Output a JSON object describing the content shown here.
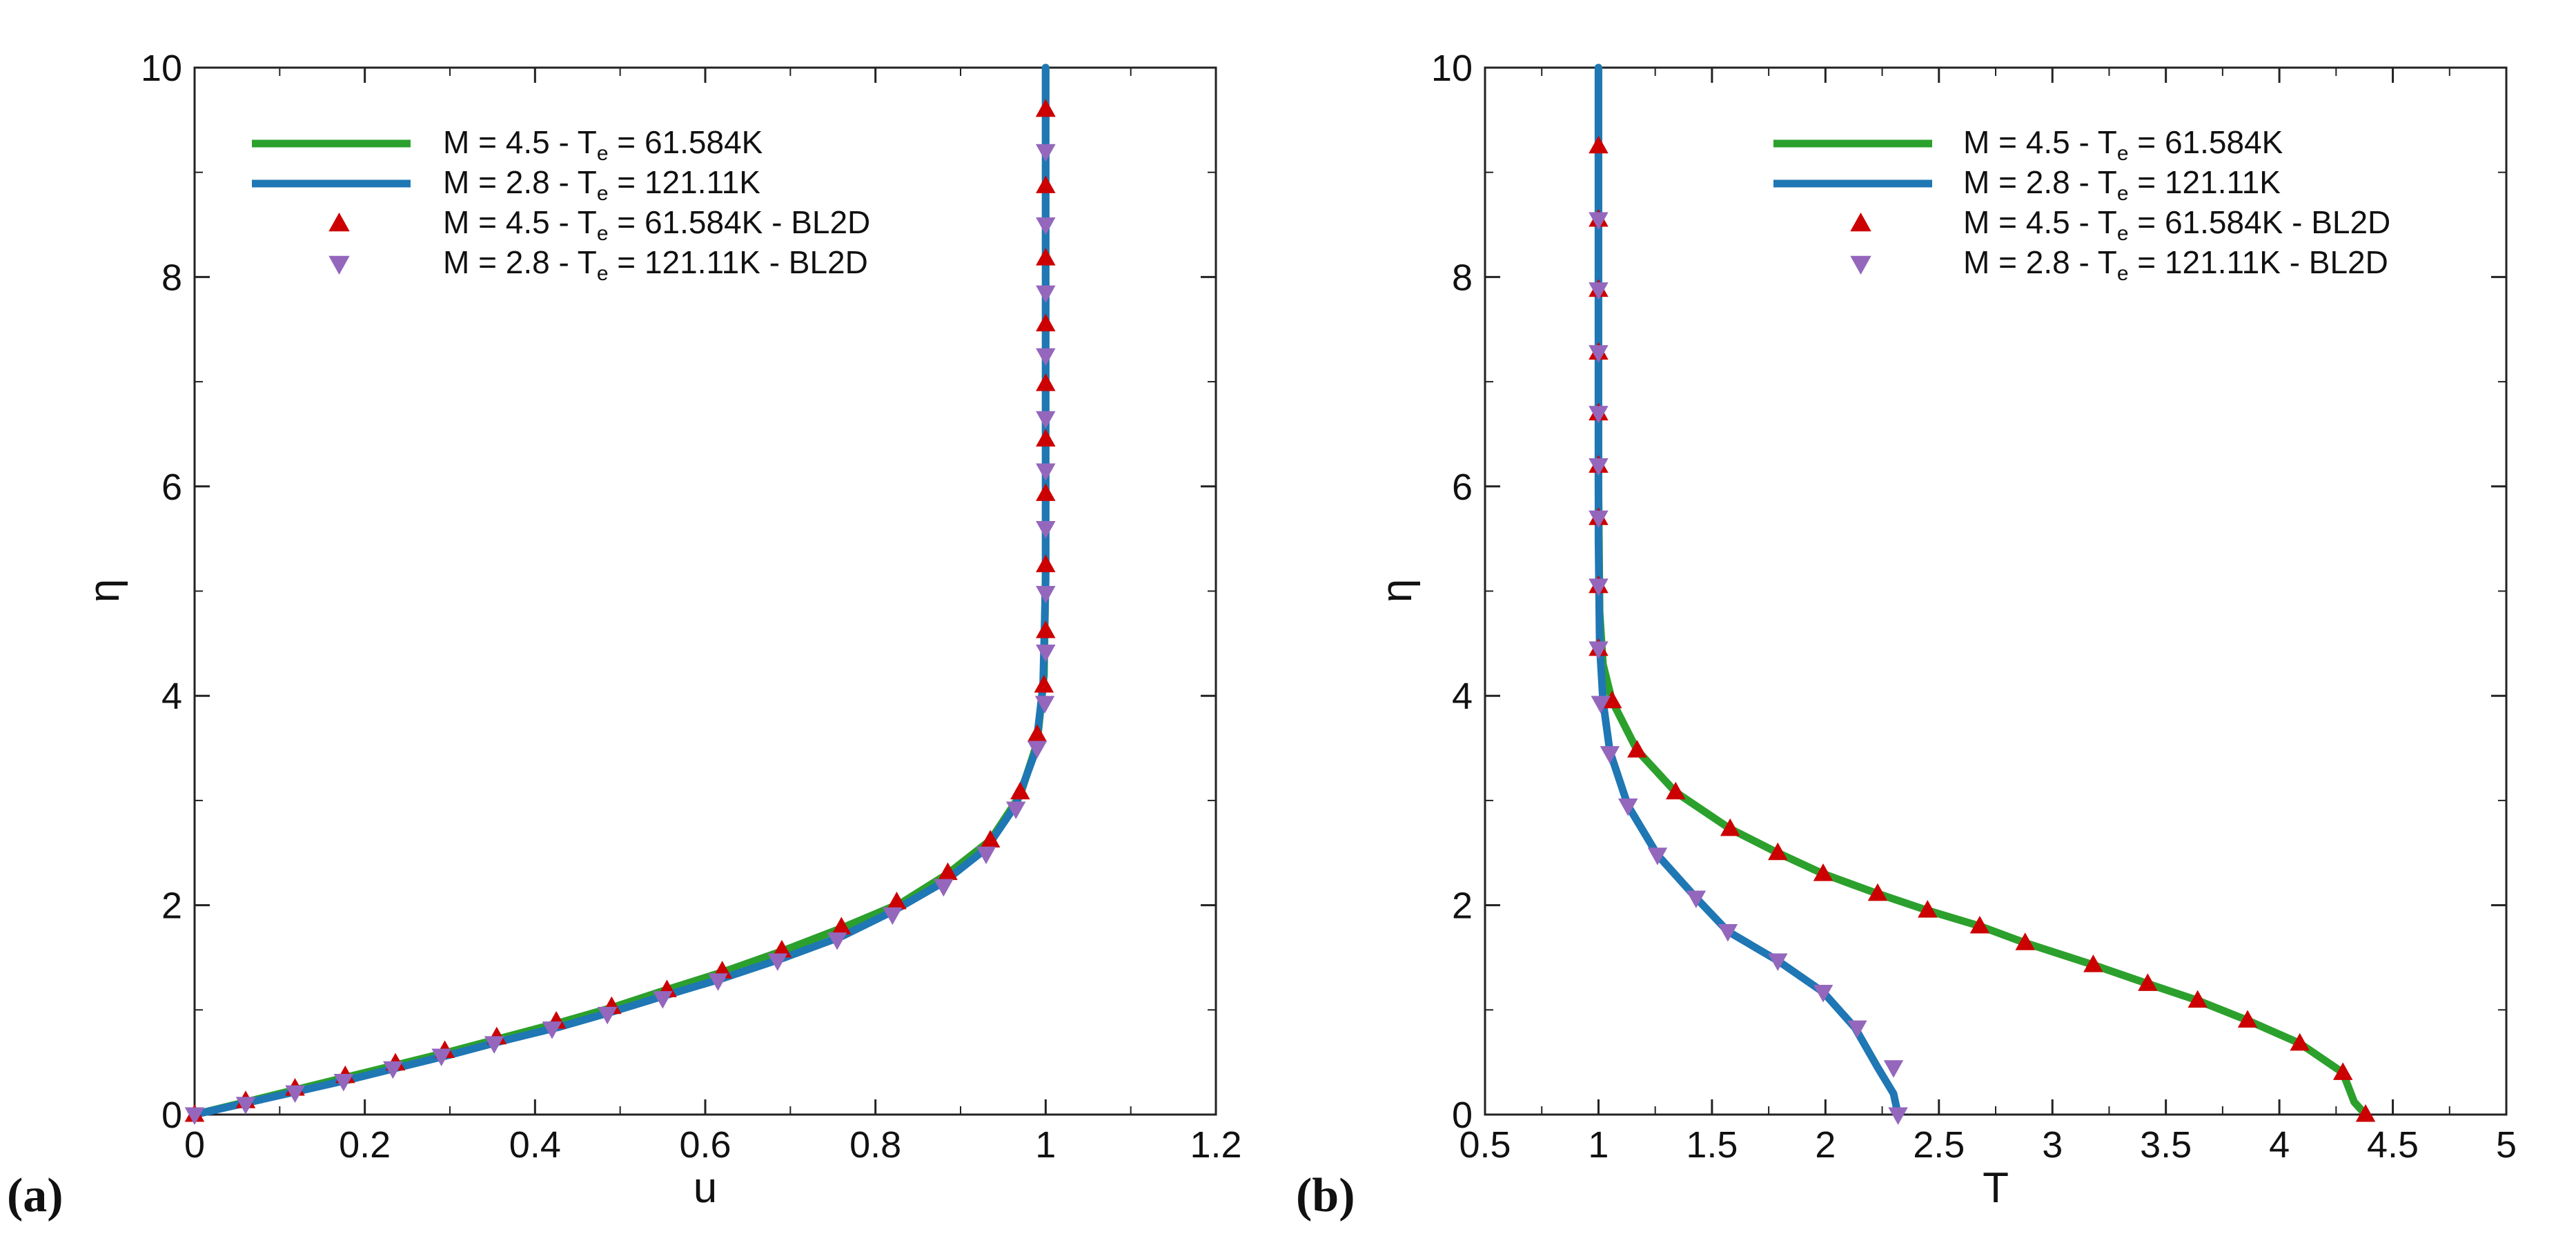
{
  "colors": {
    "green": "#2ca02c",
    "blue": "#1f77b4",
    "red": "#cc0000",
    "purple": "#9467bd"
  },
  "chart_data": [
    {
      "panel_label": "(a)",
      "type": "line",
      "xlabel": "u",
      "ylabel": "η",
      "xlim": [
        0,
        1.2
      ],
      "ylim": [
        0,
        10
      ],
      "xticks": [
        "0",
        "0.2",
        "0.4",
        "0.6",
        "0.8",
        "1",
        "1.2"
      ],
      "yticks": [
        "0",
        "2",
        "4",
        "6",
        "8",
        "10"
      ],
      "legend_position": "top-left",
      "legend": [
        {
          "pre": "M = 4.5 - T",
          "sub": "e",
          "post": " = 61.584K",
          "kind": "line",
          "color": "#2ca02c"
        },
        {
          "pre": "M = 2.8 - T",
          "sub": "e",
          "post": " = 121.11K",
          "kind": "line",
          "color": "#1f77b4"
        },
        {
          "pre": "M = 4.5 - T",
          "sub": "e",
          "post": " = 61.584K - BL2D",
          "kind": "tri-up",
          "color": "#cc0000"
        },
        {
          "pre": "M = 2.8 - T",
          "sub": "e",
          "post": " = 121.11K - BL2D",
          "kind": "tri-down",
          "color": "#9467bd"
        }
      ],
      "series": [
        {
          "name": "M = 4.5 - Te = 61.584K",
          "kind": "line",
          "color": "#2ca02c",
          "x": [
            0,
            0.06,
            0.12,
            0.18,
            0.24,
            0.3,
            0.36,
            0.43,
            0.49,
            0.55,
            0.62,
            0.69,
            0.76,
            0.83,
            0.885,
            0.935,
            0.97,
            0.99,
            0.998,
            1.0,
            1.0
          ],
          "y": [
            0,
            0.12,
            0.24,
            0.36,
            0.48,
            0.6,
            0.73,
            0.88,
            1.02,
            1.18,
            1.36,
            1.56,
            1.78,
            2.02,
            2.3,
            2.62,
            3.05,
            3.55,
            4.2,
            5.2,
            10
          ]
        },
        {
          "name": "M = 2.8 - Te = 121.11K",
          "kind": "line",
          "color": "#1f77b4",
          "x": [
            0,
            0.06,
            0.12,
            0.18,
            0.24,
            0.3,
            0.36,
            0.43,
            0.49,
            0.55,
            0.62,
            0.69,
            0.76,
            0.82,
            0.88,
            0.93,
            0.965,
            0.988,
            0.997,
            1.0,
            1.0
          ],
          "y": [
            0,
            0.11,
            0.22,
            0.33,
            0.45,
            0.57,
            0.7,
            0.84,
            0.98,
            1.13,
            1.3,
            1.49,
            1.7,
            1.94,
            2.22,
            2.54,
            2.96,
            3.47,
            4.1,
            5.1,
            10
          ]
        },
        {
          "name": "M = 4.5 - Te = 61.584K - BL2D",
          "kind": "tri-up",
          "color": "#cc0000",
          "x": [
            0,
            0.06,
            0.118,
            0.177,
            0.236,
            0.294,
            0.355,
            0.425,
            0.49,
            0.555,
            0.62,
            0.69,
            0.76,
            0.825,
            0.885,
            0.935,
            0.97,
            0.99,
            0.998,
            1,
            1,
            1,
            1,
            1,
            1,
            1,
            1,
            1,
            1,
            1,
            1
          ],
          "y": [
            0,
            0.13,
            0.25,
            0.37,
            0.49,
            0.61,
            0.74,
            0.89,
            1.03,
            1.19,
            1.37,
            1.57,
            1.79,
            2.03,
            2.31,
            2.62,
            3.08,
            3.63,
            4.1,
            4.62,
            5.25,
            5.93,
            6.45,
            6.98,
            7.55,
            8.18,
            8.87,
            9.6,
            9.6,
            9.6,
            9.6
          ]
        },
        {
          "name": "M = 2.8 - Te = 121.11K - BL2D",
          "kind": "tri-down",
          "color": "#9467bd",
          "x": [
            0,
            0.06,
            0.118,
            0.175,
            0.233,
            0.29,
            0.352,
            0.42,
            0.485,
            0.55,
            0.615,
            0.685,
            0.755,
            0.82,
            0.88,
            0.93,
            0.965,
            0.99,
            0.999,
            1,
            1,
            1,
            1,
            1,
            1,
            1,
            1,
            1,
            1
          ],
          "y": [
            0,
            0.1,
            0.21,
            0.32,
            0.44,
            0.56,
            0.68,
            0.82,
            0.96,
            1.11,
            1.28,
            1.47,
            1.67,
            1.91,
            2.18,
            2.49,
            2.92,
            3.5,
            3.93,
            4.42,
            4.98,
            5.6,
            6.15,
            6.65,
            7.25,
            7.85,
            8.5,
            9.2,
            9.2
          ]
        }
      ]
    },
    {
      "panel_label": "(b)",
      "type": "line",
      "xlabel": "T",
      "ylabel": "η",
      "xlim": [
        0.5,
        5
      ],
      "ylim": [
        0,
        10
      ],
      "xticks": [
        "0.5",
        "1",
        "1.5",
        "2",
        "2.5",
        "3",
        "3.5",
        "4",
        "4.5",
        "5"
      ],
      "yticks": [
        "0",
        "2",
        "4",
        "6",
        "8",
        "10"
      ],
      "legend_position": "top-right",
      "legend": [
        {
          "pre": "M = 4.5 - T",
          "sub": "e",
          "post": " = 61.584K",
          "kind": "line",
          "color": "#2ca02c"
        },
        {
          "pre": "M = 2.8 - T",
          "sub": "e",
          "post": " = 121.11K",
          "kind": "line",
          "color": "#1f77b4"
        },
        {
          "pre": "M = 4.5 - T",
          "sub": "e",
          "post": " = 61.584K - BL2D",
          "kind": "tri-up",
          "color": "#cc0000"
        },
        {
          "pre": "M = 2.8 - T",
          "sub": "e",
          "post": " = 121.11K - BL2D",
          "kind": "tri-down",
          "color": "#9467bd"
        }
      ],
      "series": [
        {
          "name": "M = 4.5 - Te = 61.584K",
          "kind": "line",
          "color": "#2ca02c",
          "x": [
            4.38,
            4.33,
            4.28,
            4.09,
            3.86,
            3.64,
            3.42,
            3.18,
            2.88,
            2.68,
            2.45,
            2.23,
            1.99,
            1.79,
            1.58,
            1.34,
            1.17,
            1.06,
            1.02,
            1.005,
            1.0,
            1.0
          ],
          "y": [
            0,
            0.12,
            0.4,
            0.68,
            0.9,
            1.09,
            1.25,
            1.43,
            1.64,
            1.8,
            1.95,
            2.11,
            2.3,
            2.5,
            2.73,
            3.08,
            3.48,
            3.95,
            4.3,
            4.8,
            6.0,
            10
          ]
        },
        {
          "name": "M = 2.8 - Te = 121.11K",
          "kind": "line",
          "color": "#1f77b4",
          "x": [
            2.32,
            2.3,
            2.23,
            2.13,
            1.99,
            1.79,
            1.57,
            1.43,
            1.26,
            1.13,
            1.05,
            1.02,
            1.005,
            1.0,
            1.0
          ],
          "y": [
            0,
            0.2,
            0.45,
            0.83,
            1.17,
            1.47,
            1.75,
            2.07,
            2.48,
            2.95,
            3.47,
            3.95,
            4.5,
            5.5,
            10
          ]
        },
        {
          "name": "M = 4.5 - Te = 61.584K - BL2D",
          "kind": "tri-up",
          "color": "#cc0000",
          "x": [
            4.38,
            4.28,
            4.09,
            3.86,
            3.64,
            3.42,
            3.18,
            2.88,
            2.68,
            2.45,
            2.23,
            1.99,
            1.79,
            1.58,
            1.34,
            1.17,
            1.06,
            1.0,
            1.0,
            1.0,
            1.0,
            1.0,
            1.0,
            1.0,
            1.0,
            1.0
          ],
          "y": [
            0,
            0.4,
            0.68,
            0.9,
            1.09,
            1.25,
            1.43,
            1.64,
            1.8,
            1.95,
            2.11,
            2.3,
            2.5,
            2.73,
            3.08,
            3.48,
            3.95,
            4.45,
            5.05,
            5.7,
            6.2,
            6.7,
            7.28,
            7.88,
            8.55,
            9.25
          ]
        },
        {
          "name": "M = 2.8 - Te = 121.11K - BL2D",
          "kind": "tri-down",
          "color": "#9467bd",
          "x": [
            2.32,
            2.3,
            2.14,
            1.99,
            1.79,
            1.57,
            1.43,
            1.26,
            1.13,
            1.05,
            1.01,
            1.0,
            1.0,
            1.0,
            1.0,
            1.0,
            1.0,
            1.0,
            1.0
          ],
          "y": [
            0,
            0.45,
            0.83,
            1.17,
            1.47,
            1.75,
            2.07,
            2.48,
            2.95,
            3.45,
            3.93,
            4.45,
            5.05,
            5.7,
            6.2,
            6.7,
            7.28,
            7.88,
            8.55
          ]
        }
      ]
    }
  ]
}
